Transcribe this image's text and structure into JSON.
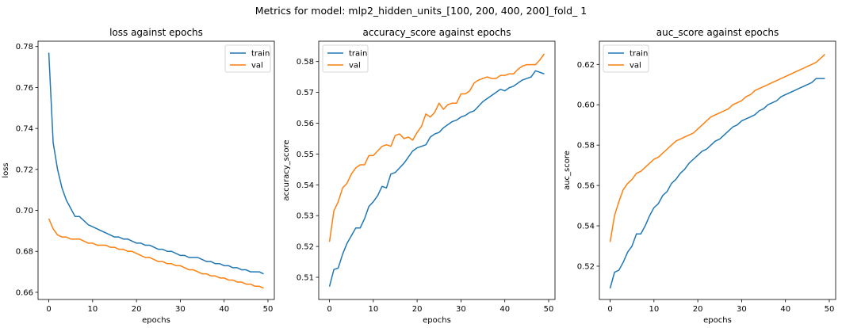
{
  "figure": {
    "suptitle": "Metrics for model: mlp2_hidden_units_[100, 200, 400, 200]_fold_ 1"
  },
  "colors": {
    "train": "#1f77b4",
    "val": "#ff7f0e"
  },
  "chart_data": [
    {
      "type": "line",
      "title": "loss against epochs",
      "xlabel": "epochs",
      "ylabel": "loss",
      "xlim": [
        -2.45,
        51.45
      ],
      "ylim": [
        0.6565,
        0.7826
      ],
      "xticks": [
        0,
        10,
        20,
        30,
        40,
        50
      ],
      "yticks": [
        0.66,
        0.68,
        0.7,
        0.72,
        0.74,
        0.76,
        0.78
      ],
      "ytick_decimals": 2,
      "legend": "top-right",
      "series": [
        {
          "name": "train",
          "values": [
            0.777,
            0.733,
            0.72,
            0.711,
            0.705,
            0.701,
            0.697,
            0.697,
            0.695,
            0.693,
            0.692,
            0.691,
            0.69,
            0.689,
            0.688,
            0.687,
            0.687,
            0.686,
            0.686,
            0.685,
            0.684,
            0.684,
            0.683,
            0.683,
            0.682,
            0.681,
            0.681,
            0.68,
            0.68,
            0.679,
            0.678,
            0.678,
            0.677,
            0.677,
            0.677,
            0.676,
            0.675,
            0.675,
            0.674,
            0.674,
            0.673,
            0.673,
            0.672,
            0.672,
            0.671,
            0.671,
            0.67,
            0.67,
            0.67,
            0.669
          ]
        },
        {
          "name": "val",
          "values": [
            0.696,
            0.691,
            0.688,
            0.687,
            0.687,
            0.686,
            0.686,
            0.686,
            0.685,
            0.684,
            0.684,
            0.683,
            0.683,
            0.683,
            0.682,
            0.682,
            0.681,
            0.681,
            0.68,
            0.68,
            0.679,
            0.678,
            0.677,
            0.677,
            0.676,
            0.675,
            0.675,
            0.674,
            0.674,
            0.673,
            0.673,
            0.672,
            0.671,
            0.671,
            0.67,
            0.669,
            0.669,
            0.668,
            0.668,
            0.667,
            0.667,
            0.666,
            0.666,
            0.665,
            0.665,
            0.664,
            0.664,
            0.663,
            0.663,
            0.662
          ]
        }
      ]
    },
    {
      "type": "line",
      "title": "accuracy_score against epochs",
      "xlabel": "epochs",
      "ylabel": "accuracy_score",
      "xlim": [
        -2.45,
        51.45
      ],
      "ylim": [
        0.5028,
        0.5866
      ],
      "xticks": [
        0,
        10,
        20,
        30,
        40,
        50
      ],
      "yticks": [
        0.51,
        0.52,
        0.53,
        0.54,
        0.55,
        0.56,
        0.57,
        0.58
      ],
      "ytick_decimals": 2,
      "legend": "top-left",
      "series": [
        {
          "name": "train",
          "values": [
            0.507,
            0.5125,
            0.513,
            0.5175,
            0.521,
            0.5235,
            0.526,
            0.526,
            0.529,
            0.533,
            0.5345,
            0.5365,
            0.5395,
            0.539,
            0.5435,
            0.544,
            0.5455,
            0.547,
            0.549,
            0.551,
            0.552,
            0.5525,
            0.553,
            0.5555,
            0.5565,
            0.557,
            0.5585,
            0.5595,
            0.5605,
            0.561,
            0.562,
            0.5625,
            0.5635,
            0.564,
            0.5655,
            0.567,
            0.568,
            0.569,
            0.57,
            0.571,
            0.5705,
            0.5715,
            0.572,
            0.573,
            0.574,
            0.5745,
            0.575,
            0.577,
            0.5765,
            0.576
          ]
        },
        {
          "name": "val",
          "values": [
            0.5215,
            0.5315,
            0.5345,
            0.539,
            0.5405,
            0.5435,
            0.5455,
            0.5465,
            0.5465,
            0.5495,
            0.5495,
            0.551,
            0.5525,
            0.553,
            0.5525,
            0.556,
            0.5565,
            0.555,
            0.5555,
            0.5545,
            0.557,
            0.559,
            0.563,
            0.562,
            0.5635,
            0.5665,
            0.5645,
            0.566,
            0.5665,
            0.5665,
            0.5695,
            0.5695,
            0.5705,
            0.573,
            0.574,
            0.5745,
            0.575,
            0.5745,
            0.5745,
            0.5755,
            0.5755,
            0.576,
            0.576,
            0.5775,
            0.5785,
            0.579,
            0.579,
            0.579,
            0.5805,
            0.5825
          ]
        }
      ]
    },
    {
      "type": "line",
      "title": "auc_score against epochs",
      "xlabel": "epochs",
      "ylabel": "auc_score",
      "xlim": [
        -2.45,
        51.45
      ],
      "ylim": [
        0.5035,
        0.6315
      ],
      "xticks": [
        0,
        10,
        20,
        30,
        40,
        50
      ],
      "yticks": [
        0.52,
        0.54,
        0.56,
        0.58,
        0.6,
        0.62
      ],
      "ytick_decimals": 2,
      "legend": "top-left",
      "series": [
        {
          "name": "train",
          "values": [
            0.509,
            0.517,
            0.518,
            0.522,
            0.527,
            0.53,
            0.536,
            0.536,
            0.54,
            0.545,
            0.549,
            0.551,
            0.555,
            0.557,
            0.561,
            0.563,
            0.566,
            0.568,
            0.571,
            0.573,
            0.575,
            0.577,
            0.578,
            0.58,
            0.582,
            0.583,
            0.585,
            0.587,
            0.589,
            0.59,
            0.592,
            0.593,
            0.594,
            0.595,
            0.597,
            0.598,
            0.6,
            0.601,
            0.602,
            0.604,
            0.605,
            0.606,
            0.607,
            0.608,
            0.609,
            0.61,
            0.611,
            0.613,
            0.613,
            0.613
          ]
        },
        {
          "name": "val",
          "values": [
            0.532,
            0.545,
            0.552,
            0.558,
            0.561,
            0.563,
            0.566,
            0.567,
            0.569,
            0.571,
            0.573,
            0.574,
            0.576,
            0.578,
            0.58,
            0.582,
            0.583,
            0.584,
            0.585,
            0.586,
            0.588,
            0.59,
            0.592,
            0.594,
            0.595,
            0.596,
            0.597,
            0.598,
            0.6,
            0.601,
            0.602,
            0.604,
            0.605,
            0.607,
            0.608,
            0.609,
            0.61,
            0.611,
            0.612,
            0.613,
            0.614,
            0.615,
            0.616,
            0.617,
            0.618,
            0.619,
            0.62,
            0.621,
            0.623,
            0.625
          ]
        }
      ]
    }
  ]
}
